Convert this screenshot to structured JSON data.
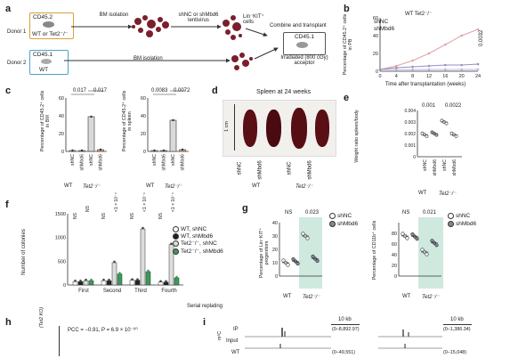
{
  "panels": {
    "a": "a",
    "b": "b",
    "c": "c",
    "d": "d",
    "e": "e",
    "f": "f",
    "g": "g",
    "h": "h",
    "i": "i"
  },
  "panel_a": {
    "donor1": "Donor 1",
    "donor1_box_top": "CD45.2",
    "donor1_box_bottom": "WT or Tet2⁻/⁻",
    "donor2": "Donor 2",
    "donor2_box_top": "CD45.1",
    "donor2_box_bottom": "WT",
    "step_bm_isolation_1": "BM isolation",
    "step_lentivirus": "shNC or shMbd6 lentivirus",
    "step_cells": "Lin⁻KIT⁺ cells",
    "step_combine": "Combine and transplant",
    "acceptor_box": "CD45.1",
    "acceptor_label": "Irradiated (800 cGy) acceptor",
    "step_bm_isolation_2": "BM isolation"
  },
  "panel_b": {
    "legend_title": "WT Tet2⁻/⁻",
    "legend_shNC": "shNC",
    "legend_shMbd6": "shMbd6",
    "ylabel": "Percentage of CD45.2⁺ cells in PB",
    "xlabel": "Time after transplantation (weeks)",
    "pvalue": "0.0032"
  },
  "panel_c": {
    "ylabel_left": "Percentage of CD45.2⁺ cells in BM",
    "ylabel_right": "Percentage of CD45.2⁺ cells in spleen",
    "p_left_1": "0.017",
    "p_left_2": "0.017",
    "p_right_1": "0.0083",
    "p_right_2": "0.0072",
    "group_wt": "WT",
    "group_tet2": "Tet2⁻/⁻",
    "cond_shNC": "shNC",
    "cond_shMbd6": "shMbd6"
  },
  "panel_d": {
    "title": "Spleen at 24 weeks",
    "ruler": "1 cm",
    "cond_shNC": "shNC",
    "cond_shMbd6": "shMbd6",
    "group_wt": "WT",
    "group_tet2": "Tet2⁻/⁻"
  },
  "panel_e": {
    "ylabel": "Weight ratio spleen/body",
    "p1": "0.001",
    "p2": "0.0022",
    "cond_shNC": "shNC",
    "cond_shMbd6": "shMbd6",
    "group_wt": "WT",
    "group_tet2": "Tet2⁻/⁻"
  },
  "panel_f": {
    "ylabel": "Number of colonies",
    "xlabel": "Serial replating",
    "sig": [
      "NS",
      "NS",
      "NS",
      "<1 × 10⁻⁴",
      "NS",
      "<1 × 10⁻⁴",
      "NS",
      "<1 × 10⁻⁴"
    ],
    "legend": [
      "WT, shNC",
      "WT, shMbd6",
      "Tet2⁻/⁻, shNC",
      "Tet2⁻/⁻, shMbd6"
    ]
  },
  "panel_g": {
    "ylabel_left": "Percentage of Lin⁻KIT⁺ progenitors",
    "ylabel_right": "Percentage of CD11b⁺ cells",
    "left_p_ns": "NS",
    "left_p": "0.023",
    "right_p_ns": "NS",
    "right_p": "0.021",
    "legend_shNC": "shNC",
    "legend_shMbd6": "shMbd6",
    "group_wt": "WT",
    "group_tet2": "Tet2⁻/⁻"
  },
  "panel_h": {
    "ylabel": "(Tet2 KO)",
    "stats": "PCC = −0.91, P = 6.9 × 10⁻⁶⁰"
  },
  "panel_i": {
    "scale_left": "10 kb",
    "scale_right": "10 kb",
    "track_ip": "IP",
    "track_input": "Input",
    "track_wt": "WT",
    "range_left_1": "(0–8,892.97)",
    "range_left_2": "(0–49,551)",
    "range_right_1": "(0–1,386.34)",
    "range_right_2": "(0–15,048)",
    "side_label": "m¹C"
  },
  "chart_data": [
    {
      "type": "line",
      "panel": "b",
      "x": [
        0,
        4,
        8,
        12,
        16,
        20,
        24
      ],
      "series": [
        {
          "name": "WT shNC",
          "values": [
            2,
            2,
            2,
            2,
            2,
            2,
            2
          ]
        },
        {
          "name": "WT shMbd6",
          "values": [
            2,
            2,
            2,
            2,
            2,
            2,
            2
          ]
        },
        {
          "name": "Tet2⁻/⁻ shNC",
          "values": [
            2,
            6,
            12,
            20,
            30,
            40,
            47
          ]
        },
        {
          "name": "Tet2⁻/⁻ shMbd6",
          "values": [
            2,
            4,
            5,
            6,
            7,
            7,
            8
          ]
        }
      ],
      "xlabel": "Time after transplantation (weeks)",
      "ylabel": "Percentage of CD45.2⁺ cells in PB",
      "xticks": [
        0,
        4,
        8,
        12,
        16,
        20,
        24
      ],
      "yticks": [
        0,
        20,
        40,
        60
      ],
      "ylim": [
        0,
        60
      ],
      "colors": {
        "Tet2⁻/⁻ shNC": "#e0a3a8",
        "Tet2⁻/⁻ shMbd6": "#9a8fc0",
        "WT": "#8a9ad6"
      }
    },
    {
      "type": "bar",
      "panel": "c-left",
      "categories": [
        "WT shNC",
        "WT shMbd6",
        "Tet2 shNC",
        "Tet2 shMbd6"
      ],
      "values": [
        1,
        1,
        39,
        2
      ],
      "ylabel": "Percentage of CD45.2⁺ cells in BM",
      "yticks": [
        0,
        20,
        40,
        60
      ],
      "ylim": [
        0,
        60
      ]
    },
    {
      "type": "bar",
      "panel": "c-right",
      "categories": [
        "WT shNC",
        "WT shMbd6",
        "Tet2 shNC",
        "Tet2 shMbd6"
      ],
      "values": [
        1,
        1,
        35,
        2
      ],
      "ylabel": "Percentage of CD45.2⁺ cells in spleen",
      "yticks": [
        0,
        20,
        40,
        60
      ],
      "ylim": [
        0,
        60
      ]
    },
    {
      "type": "scatter",
      "panel": "e",
      "categories": [
        "WT shNC",
        "WT shMbd6",
        "Tet2 shNC",
        "Tet2 shMbd6"
      ],
      "values": [
        0.0019,
        0.002,
        0.003,
        0.0019
      ],
      "ylabel": "Weight ratio spleen/body",
      "yticks": [
        0,
        0.001,
        0.002,
        0.003,
        0.004
      ],
      "ylim": [
        0,
        0.004
      ]
    },
    {
      "type": "bar",
      "panel": "f",
      "categories": [
        "First",
        "Second",
        "Third",
        "Fourth"
      ],
      "series": [
        {
          "name": "WT, shNC",
          "values": [
            70,
            90,
            100,
            60
          ]
        },
        {
          "name": "WT, shMbd6",
          "values": [
            70,
            90,
            100,
            60
          ]
        },
        {
          "name": "Tet2⁻/⁻, shNC",
          "values": [
            90,
            470,
            1180,
            850
          ]
        },
        {
          "name": "Tet2⁻/⁻, shMbd6",
          "values": [
            90,
            230,
            280,
            150
          ]
        }
      ],
      "ylabel": "Number of colonies",
      "xlabel": "Serial replating",
      "yticks": [
        0,
        500,
        1000,
        1500
      ],
      "ylim": [
        0,
        1500
      ],
      "colors": {
        "Tet2⁻/⁻, shMbd6": "#3a9a5a"
      }
    },
    {
      "type": "scatter",
      "panel": "g-left",
      "categories": [
        "WT shNC",
        "WT shMbd6",
        "Tet2 shNC",
        "Tet2 shMbd6"
      ],
      "values": [
        10,
        11,
        30,
        13
      ],
      "ylabel": "Percentage of Lin⁻KIT⁺ progenitors",
      "yticks": [
        0,
        10,
        20,
        30,
        40
      ],
      "ylim": [
        0,
        40
      ]
    },
    {
      "type": "scatter",
      "panel": "g-right",
      "categories": [
        "WT shNC",
        "WT shMbd6",
        "Tet2 shNC",
        "Tet2 shMbd6"
      ],
      "values": [
        75,
        74,
        45,
        62
      ],
      "ylabel": "Percentage of CD11b⁺ cells",
      "yticks": [
        0,
        20,
        40,
        60,
        80
      ],
      "ylim": [
        0,
        100
      ]
    }
  ],
  "colors": {
    "shNC_wt": "#ffffff",
    "shMbd6_gray": "#d9d9d9",
    "tet2_shMbd6_orange": "#f2b48a",
    "tet2_highlight": "#cfe9df",
    "tet2_green": "#3a9a5a",
    "spleen": "#5a0f14",
    "cell": "#7a1f2b",
    "donor1_border": "#d8a13a",
    "donor2_border": "#4aa3c7"
  }
}
